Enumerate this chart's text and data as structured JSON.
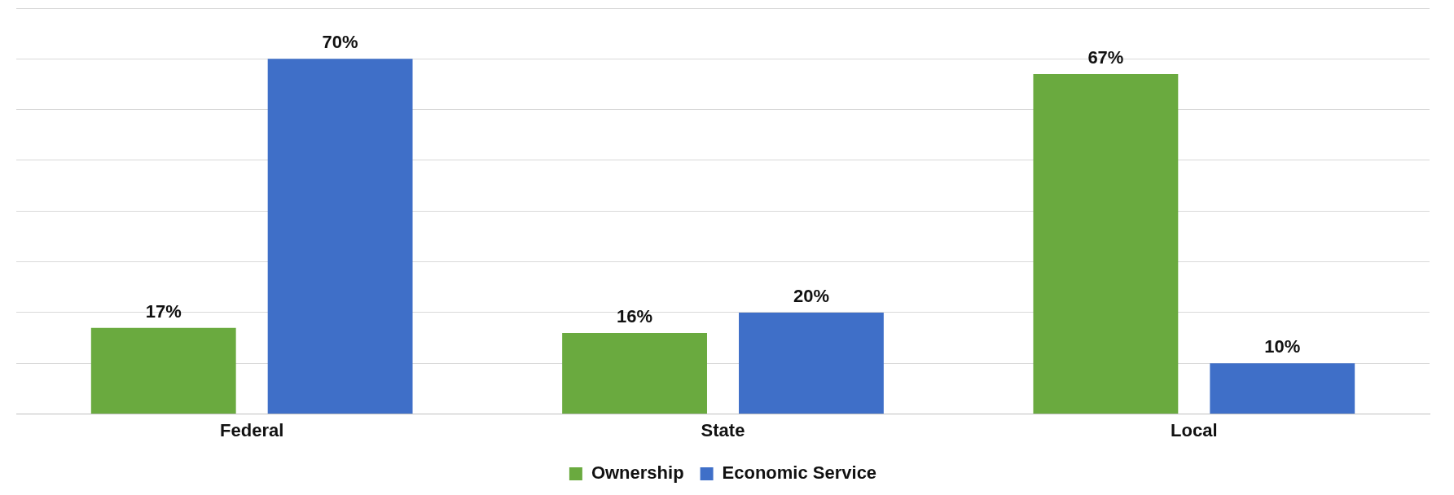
{
  "chart_data": {
    "type": "bar",
    "categories": [
      "Federal",
      "State",
      "Local"
    ],
    "series": [
      {
        "name": "Ownership",
        "color": "#6aaa3f",
        "values": [
          17,
          16,
          67
        ],
        "value_labels": [
          "17%",
          "16%",
          "67%"
        ]
      },
      {
        "name": "Economic Service",
        "color": "#3f6fc8",
        "values": [
          70,
          20,
          10
        ],
        "value_labels": [
          "70%",
          "20%",
          "10%"
        ]
      }
    ],
    "ylim": [
      0,
      80
    ],
    "yticks": [
      0,
      10,
      20,
      30,
      40,
      50,
      60,
      70,
      80
    ],
    "grid": "y",
    "tick_labels": "x",
    "legend": "bottom"
  }
}
